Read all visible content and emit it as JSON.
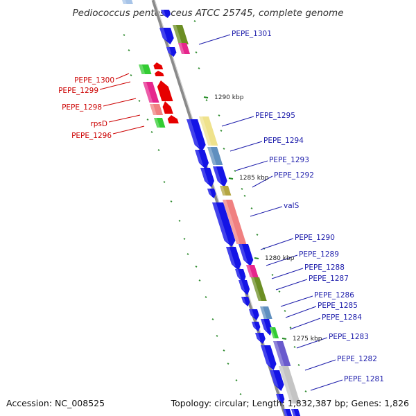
{
  "title": "Pediococcus pentosaceus ATCC 25745, complete genome",
  "footer": {
    "accession": "Accession: NC_008525",
    "topology": "Topology: circular; Length: 1,832,387 bp; Genes: 1,826"
  },
  "colors": {
    "backbone": "#888888",
    "gc_tick": "#228b22",
    "forward_label": "#1a1aaa",
    "reverse_label": "#cc0000"
  },
  "position_labels": [
    "1290 kbp",
    "1285 kbp",
    "1280 kbp",
    "1275 kbp"
  ],
  "forward_labels": [
    "PEPE_1301",
    "PEPE_1295",
    "PEPE_1294",
    "PEPE_1293",
    "PEPE_1292",
    "valS",
    "PEPE_1290",
    "PEPE_1289",
    "PEPE_1288",
    "PEPE_1287",
    "PEPE_1286",
    "PEPE_1285",
    "PEPE_1284",
    "PEPE_1283",
    "PEPE_1282",
    "PEPE_1281"
  ],
  "reverse_labels": [
    "PEPE_1300",
    "PEPE_1299",
    "PEPE_1298",
    "rpsD",
    "PEPE_1296"
  ]
}
